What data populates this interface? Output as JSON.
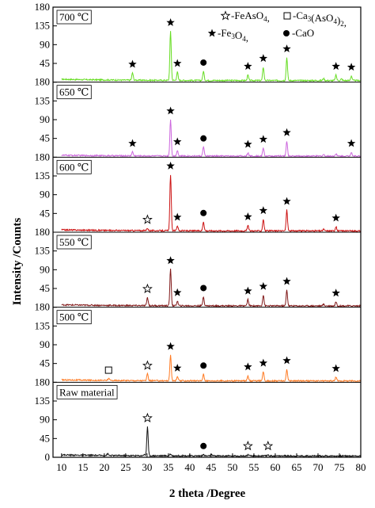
{
  "chart_data": {
    "type": "line",
    "xlabel": "2 theta /Degree",
    "ylabel": "Intensity /Counts",
    "xlim": [
      8,
      80
    ],
    "x_ticks": [
      10,
      15,
      20,
      25,
      30,
      35,
      40,
      45,
      50,
      55,
      60,
      65,
      70,
      75,
      80
    ],
    "y_ticks_panel": [
      0,
      45,
      90,
      135,
      180
    ],
    "y_tick_labels": [
      "180",
      "135",
      "90",
      "45"
    ],
    "y_bottom_label": "0",
    "legend": {
      "placement": "top-right",
      "entries": [
        {
          "symbol": "open-star",
          "formula": [
            {
              "t": "-FeAsO"
            },
            {
              "t": "4",
              "sub": true
            },
            {
              "t": ", "
            }
          ]
        },
        {
          "symbol": "open-square",
          "formula": [
            {
              "t": "-Ca"
            },
            {
              "t": "3",
              "sub": true
            },
            {
              "t": "(AsO"
            },
            {
              "t": "4",
              "sub": true
            },
            {
              "t": ")"
            },
            {
              "t": "2",
              "sub": true
            },
            {
              "t": ","
            }
          ]
        },
        {
          "symbol": "filled-star",
          "formula": [
            {
              "t": "-Fe"
            },
            {
              "t": "3",
              "sub": true
            },
            {
              "t": "O"
            },
            {
              "t": "4",
              "sub": true
            },
            {
              "t": ","
            }
          ]
        },
        {
          "symbol": "filled-circle",
          "formula": [
            {
              "t": "-CaO"
            }
          ]
        }
      ]
    },
    "series": [
      {
        "name": "700 ℃",
        "color": "#66dd22",
        "baseline": 6,
        "peaks": [
          [
            26.6,
            18
          ],
          [
            35.5,
            118
          ],
          [
            37.1,
            20
          ],
          [
            43.2,
            22
          ],
          [
            53.6,
            13
          ],
          [
            57.2,
            32
          ],
          [
            62.7,
            55
          ],
          [
            71.3,
            5
          ],
          [
            74.2,
            13
          ],
          [
            75.5,
            4
          ],
          [
            77.8,
            11
          ]
        ],
        "markers": [
          {
            "x": 26.6,
            "symbol": "filled-star"
          },
          {
            "x": 35.5,
            "symbol": "filled-star"
          },
          {
            "x": 37.1,
            "symbol": "filled-star"
          },
          {
            "x": 43.2,
            "symbol": "filled-circle"
          },
          {
            "x": 53.6,
            "symbol": "filled-star"
          },
          {
            "x": 57.2,
            "symbol": "filled-star"
          },
          {
            "x": 62.7,
            "symbol": "filled-star"
          },
          {
            "x": 74.2,
            "symbol": "filled-star"
          },
          {
            "x": 77.8,
            "symbol": "filled-star"
          }
        ]
      },
      {
        "name": "650 ℃",
        "color": "#cc66dd",
        "baseline": 4,
        "peaks": [
          [
            26.6,
            10
          ],
          [
            35.5,
            88
          ],
          [
            37.1,
            14
          ],
          [
            43.2,
            22
          ],
          [
            53.6,
            8
          ],
          [
            57.2,
            20
          ],
          [
            62.7,
            36
          ],
          [
            71.3,
            4
          ],
          [
            74.2,
            6
          ],
          [
            77.8,
            10
          ]
        ],
        "markers": [
          {
            "x": 26.6,
            "symbol": "filled-star"
          },
          {
            "x": 35.5,
            "symbol": "filled-star"
          },
          {
            "x": 37.1,
            "symbol": "filled-star"
          },
          {
            "x": 43.2,
            "symbol": "filled-circle"
          },
          {
            "x": 53.6,
            "symbol": "filled-star"
          },
          {
            "x": 57.2,
            "symbol": "filled-star"
          },
          {
            "x": 62.7,
            "symbol": "filled-star"
          },
          {
            "x": 77.8,
            "symbol": "filled-star"
          }
        ]
      },
      {
        "name": "600 ℃",
        "color": "#cc1111",
        "baseline": 5,
        "peaks": [
          [
            30.1,
            6
          ],
          [
            35.5,
            135
          ],
          [
            37.1,
            12
          ],
          [
            43.2,
            22
          ],
          [
            53.6,
            13
          ],
          [
            57.2,
            28
          ],
          [
            62.7,
            50
          ],
          [
            71.3,
            4
          ],
          [
            74.2,
            10
          ]
        ],
        "markers": [
          {
            "x": 30.1,
            "symbol": "open-star"
          },
          {
            "x": 35.5,
            "symbol": "filled-star"
          },
          {
            "x": 37.1,
            "symbol": "filled-star"
          },
          {
            "x": 43.2,
            "symbol": "filled-circle"
          },
          {
            "x": 53.6,
            "symbol": "filled-star"
          },
          {
            "x": 57.2,
            "symbol": "filled-star"
          },
          {
            "x": 62.7,
            "symbol": "filled-star"
          },
          {
            "x": 74.2,
            "symbol": "filled-star"
          }
        ]
      },
      {
        "name": "550 ℃",
        "color": "#801818",
        "baseline": 5,
        "peaks": [
          [
            30.1,
            20
          ],
          [
            35.5,
            88
          ],
          [
            37.1,
            11
          ],
          [
            43.2,
            22
          ],
          [
            53.6,
            15
          ],
          [
            57.2,
            26
          ],
          [
            62.7,
            38
          ],
          [
            71.3,
            4
          ],
          [
            74.2,
            10
          ]
        ],
        "markers": [
          {
            "x": 30.1,
            "symbol": "open-star"
          },
          {
            "x": 35.5,
            "symbol": "filled-star"
          },
          {
            "x": 37.1,
            "symbol": "filled-star"
          },
          {
            "x": 43.2,
            "symbol": "filled-circle"
          },
          {
            "x": 53.6,
            "symbol": "filled-star"
          },
          {
            "x": 57.2,
            "symbol": "filled-star"
          },
          {
            "x": 62.7,
            "symbol": "filled-star"
          },
          {
            "x": 74.2,
            "symbol": "filled-star"
          }
        ]
      },
      {
        "name": "500 ℃",
        "color": "#ff7a22",
        "baseline": 5,
        "peaks": [
          [
            21.0,
            5
          ],
          [
            30.1,
            16
          ],
          [
            35.5,
            62
          ],
          [
            37.1,
            10
          ],
          [
            43.2,
            16
          ],
          [
            53.6,
            13
          ],
          [
            57.2,
            22
          ],
          [
            62.7,
            28
          ],
          [
            74.2,
            9
          ]
        ],
        "markers": [
          {
            "x": 21.0,
            "symbol": "open-square"
          },
          {
            "x": 30.1,
            "symbol": "open-star"
          },
          {
            "x": 35.5,
            "symbol": "filled-star"
          },
          {
            "x": 37.1,
            "symbol": "filled-star"
          },
          {
            "x": 43.2,
            "symbol": "filled-circle"
          },
          {
            "x": 53.6,
            "symbol": "filled-star"
          },
          {
            "x": 57.2,
            "symbol": "filled-star"
          },
          {
            "x": 62.7,
            "symbol": "filled-star"
          },
          {
            "x": 74.2,
            "symbol": "filled-star"
          }
        ]
      },
      {
        "name": "Raw material",
        "color": "#111111",
        "baseline": 5,
        "peaks": [
          [
            20.8,
            4
          ],
          [
            29.3,
            3
          ],
          [
            30.1,
            70
          ],
          [
            35.4,
            4
          ],
          [
            43.2,
            3
          ],
          [
            45.0,
            3
          ],
          [
            53.6,
            3
          ],
          [
            58.3,
            3
          ]
        ],
        "markers": [
          {
            "x": 30.1,
            "symbol": "open-star"
          },
          {
            "x": 43.2,
            "symbol": "filled-circle"
          },
          {
            "x": 53.6,
            "symbol": "open-star"
          },
          {
            "x": 58.3,
            "symbol": "open-star"
          }
        ]
      }
    ]
  }
}
